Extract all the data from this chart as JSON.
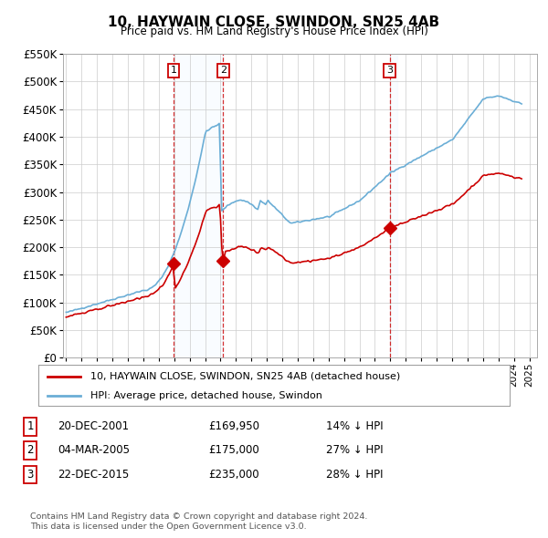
{
  "title": "10, HAYWAIN CLOSE, SWINDON, SN25 4AB",
  "subtitle": "Price paid vs. HM Land Registry's House Price Index (HPI)",
  "footnote": "Contains HM Land Registry data © Crown copyright and database right 2024.\nThis data is licensed under the Open Government Licence v3.0.",
  "legend_line1": "10, HAYWAIN CLOSE, SWINDON, SN25 4AB (detached house)",
  "legend_line2": "HPI: Average price, detached house, Swindon",
  "transactions": [
    {
      "num": 1,
      "date": "20-DEC-2001",
      "price": 169950,
      "pct": "14%",
      "dir": "↓",
      "year": 2001.96
    },
    {
      "num": 2,
      "date": "04-MAR-2005",
      "price": 175000,
      "pct": "27%",
      "dir": "↓",
      "year": 2005.17
    },
    {
      "num": 3,
      "date": "22-DEC-2015",
      "price": 235000,
      "pct": "28%",
      "dir": "↓",
      "year": 2015.96
    }
  ],
  "hpi_color": "#6baed6",
  "price_color": "#cc0000",
  "vline_color": "#cc0000",
  "shade_color": "#ddeeff",
  "ylim": [
    0,
    550000
  ],
  "yticks": [
    0,
    50000,
    100000,
    150000,
    200000,
    250000,
    300000,
    350000,
    400000,
    450000,
    500000,
    550000
  ],
  "xlim_start": 1994.8,
  "xlim_end": 2025.5,
  "background_color": "#ffffff",
  "grid_color": "#cccccc",
  "years_start": 1995,
  "years_end": 2025
}
